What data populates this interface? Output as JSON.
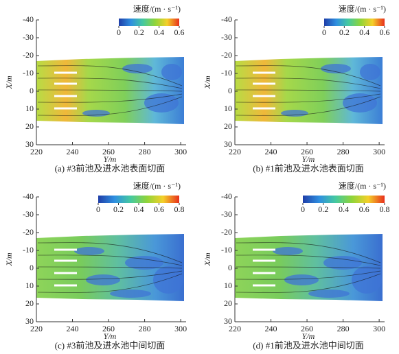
{
  "chart_data": [
    {
      "type": "contour",
      "caption": "(a) #3前池及进水池表面切面",
      "xlabel": "Y/m",
      "ylabel": "X/m",
      "xlim": [
        220,
        303
      ],
      "xticks": [
        220,
        240,
        260,
        280,
        300
      ],
      "ylim": [
        -40,
        30
      ],
      "yticks": [
        -40,
        -30,
        -20,
        -10,
        0,
        10,
        20,
        30
      ],
      "colorbar_title": "速度/(m · s⁻¹)",
      "colorbar_lim": [
        0,
        0.6
      ],
      "colorbar_ticks": [
        0,
        0.2,
        0.4,
        0.6
      ]
    },
    {
      "type": "contour",
      "caption": "(b) #1前池及进水池表面切面",
      "xlabel": "Y/m",
      "ylabel": "X/m",
      "xlim": [
        220,
        303
      ],
      "xticks": [
        220,
        240,
        260,
        280,
        300
      ],
      "ylim": [
        -40,
        30
      ],
      "yticks": [
        -40,
        -30,
        -20,
        -10,
        0,
        10,
        20,
        30
      ],
      "colorbar_title": "速度/(m · s⁻¹)",
      "colorbar_lim": [
        0,
        0.6
      ],
      "colorbar_ticks": [
        0,
        0.2,
        0.4,
        0.6
      ]
    },
    {
      "type": "contour",
      "caption": "(c) #3前池及进水池中间切面",
      "xlabel": "Y/m",
      "ylabel": "X/m",
      "xlim": [
        220,
        303
      ],
      "xticks": [
        220,
        240,
        260,
        280,
        300
      ],
      "ylim": [
        -40,
        30
      ],
      "yticks": [
        -40,
        -30,
        -20,
        -10,
        0,
        10,
        20,
        30
      ],
      "colorbar_title": "速度/(m · s⁻¹)",
      "colorbar_lim": [
        0,
        0.8
      ],
      "colorbar_ticks": [
        0,
        0.2,
        0.4,
        0.6,
        0.8
      ]
    },
    {
      "type": "contour",
      "caption": "(d) #1前池及进水池中间切面",
      "xlabel": "Y/m",
      "ylabel": "X/m",
      "xlim": [
        220,
        303
      ],
      "xticks": [
        220,
        240,
        260,
        280,
        300
      ],
      "ylim": [
        -40,
        30
      ],
      "yticks": [
        -40,
        -30,
        -20,
        -10,
        0,
        10,
        20,
        30
      ],
      "colorbar_title": "速度/(m · s⁻¹)",
      "colorbar_lim": [
        0,
        0.8
      ],
      "colorbar_ticks": [
        0,
        0.2,
        0.4,
        0.6,
        0.8
      ]
    }
  ]
}
